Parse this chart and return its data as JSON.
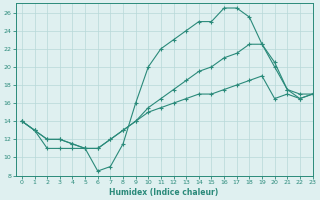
{
  "line1_x": [
    0,
    1,
    2,
    3,
    4,
    5,
    6,
    7,
    8,
    9,
    10,
    11,
    12,
    13,
    14,
    15,
    16,
    17,
    18,
    19,
    20,
    21,
    22,
    23
  ],
  "line1_y": [
    14,
    13,
    11,
    11,
    11,
    11,
    8.5,
    9,
    11.5,
    16,
    20,
    22,
    23,
    24,
    25,
    25,
    26.5,
    26.5,
    25.5,
    22.5,
    20.5,
    17.5,
    17,
    17
  ],
  "line2_x": [
    0,
    1,
    2,
    3,
    4,
    5,
    6,
    7,
    8,
    9,
    10,
    11,
    12,
    13,
    14,
    15,
    16,
    17,
    18,
    19,
    20,
    21,
    22,
    23
  ],
  "line2_y": [
    14,
    13,
    12,
    12,
    11.5,
    11,
    11,
    12,
    13,
    14,
    15,
    15.5,
    16,
    16.5,
    17,
    17,
    17.5,
    18,
    18.5,
    19,
    16.5,
    17,
    16.5,
    17
  ],
  "line3_x": [
    0,
    1,
    2,
    3,
    4,
    5,
    6,
    7,
    8,
    9,
    10,
    11,
    12,
    13,
    14,
    15,
    16,
    17,
    18,
    19,
    20,
    21,
    22,
    23
  ],
  "line3_y": [
    14,
    13,
    12,
    12,
    11.5,
    11,
    11,
    12,
    13,
    14,
    15.5,
    16.5,
    17.5,
    18.5,
    19.5,
    20,
    21,
    21.5,
    22.5,
    22.5,
    20,
    17.5,
    16.5,
    17
  ],
  "color": "#2a8a7a",
  "bg_color": "#dff0f0",
  "grid_color": "#b8d8d8",
  "xlabel": "Humidex (Indice chaleur)",
  "ylim": [
    8,
    27
  ],
  "xlim": [
    -0.5,
    23
  ],
  "yticks": [
    8,
    10,
    12,
    14,
    16,
    18,
    20,
    22,
    24,
    26
  ],
  "xticks": [
    0,
    1,
    2,
    3,
    4,
    5,
    6,
    7,
    8,
    9,
    10,
    11,
    12,
    13,
    14,
    15,
    16,
    17,
    18,
    19,
    20,
    21,
    22,
    23
  ]
}
